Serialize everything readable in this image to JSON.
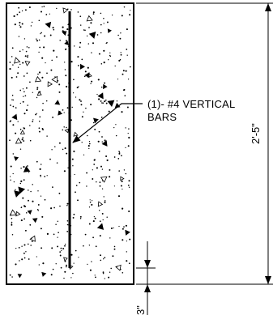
{
  "diagram": {
    "rebar_callout": {
      "line1": "(1)- #4 VERTICAL",
      "line2": "BARS"
    },
    "dimensions": {
      "overall_height": "2'-5\"",
      "bottom_cover": "3\""
    }
  }
}
